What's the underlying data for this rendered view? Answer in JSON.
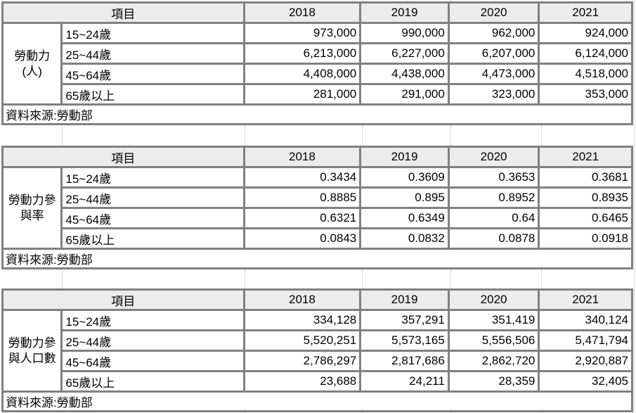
{
  "colors": {
    "header_fill": "#ececec",
    "table_border": "#808080",
    "gridline": "#d9d9d9",
    "text": "#000000",
    "background": "#ffffff"
  },
  "tables": [
    {
      "header": {
        "item_label": "項目",
        "years": [
          "2018",
          "2019",
          "2020",
          "2021"
        ]
      },
      "group_label": "勞動力(人)",
      "group_lines": [
        "勞動力",
        "(人)"
      ],
      "rows": [
        {
          "age": "15~24歲",
          "values": [
            "973,000",
            "990,000",
            "962,000",
            "924,000"
          ]
        },
        {
          "age": "25~44歲",
          "values": [
            "6,213,000",
            "6,227,000",
            "6,207,000",
            "6,124,000"
          ]
        },
        {
          "age": "45~64歲",
          "values": [
            "4,408,000",
            "4,438,000",
            "4,473,000",
            "4,518,000"
          ]
        },
        {
          "age": "65歲以上",
          "values": [
            "281,000",
            "291,000",
            "323,000",
            "353,000"
          ]
        }
      ],
      "source": "資料來源:勞動部"
    },
    {
      "header": {
        "item_label": "項目",
        "years": [
          "2018",
          "2019",
          "2020",
          "2021"
        ]
      },
      "group_label": "勞動力參與率",
      "group_lines": [
        "勞動力參",
        "與率"
      ],
      "rows": [
        {
          "age": "15~24歲",
          "values": [
            "0.3434",
            "0.3609",
            "0.3653",
            "0.3681"
          ]
        },
        {
          "age": "25~44歲",
          "values": [
            "0.8885",
            "0.895",
            "0.8952",
            "0.8935"
          ]
        },
        {
          "age": "45~64歲",
          "values": [
            "0.6321",
            "0.6349",
            "0.64",
            "0.6465"
          ]
        },
        {
          "age": "65歲以上",
          "values": [
            "0.0843",
            "0.0832",
            "0.0878",
            "0.0918"
          ]
        }
      ],
      "source": "資料來源:勞動部"
    },
    {
      "header": {
        "item_label": "項目",
        "years": [
          "2018",
          "2019",
          "2020",
          "2021"
        ]
      },
      "group_label": "勞動力參與人口數",
      "group_lines": [
        "勞動力參",
        "與人口數"
      ],
      "rows": [
        {
          "age": "15~24歲",
          "values": [
            "334,128",
            "357,291",
            "351,419",
            "340,124"
          ]
        },
        {
          "age": "25~44歲",
          "values": [
            "5,520,251",
            "5,573,165",
            "5,556,506",
            "5,471,794"
          ]
        },
        {
          "age": "45~64歲",
          "values": [
            "2,786,297",
            "2,817,686",
            "2,862,720",
            "2,920,887"
          ]
        },
        {
          "age": "65歲以上",
          "values": [
            "23,688",
            "24,211",
            "28,359",
            "32,405"
          ]
        }
      ],
      "source": "資料來源:勞動部"
    }
  ]
}
